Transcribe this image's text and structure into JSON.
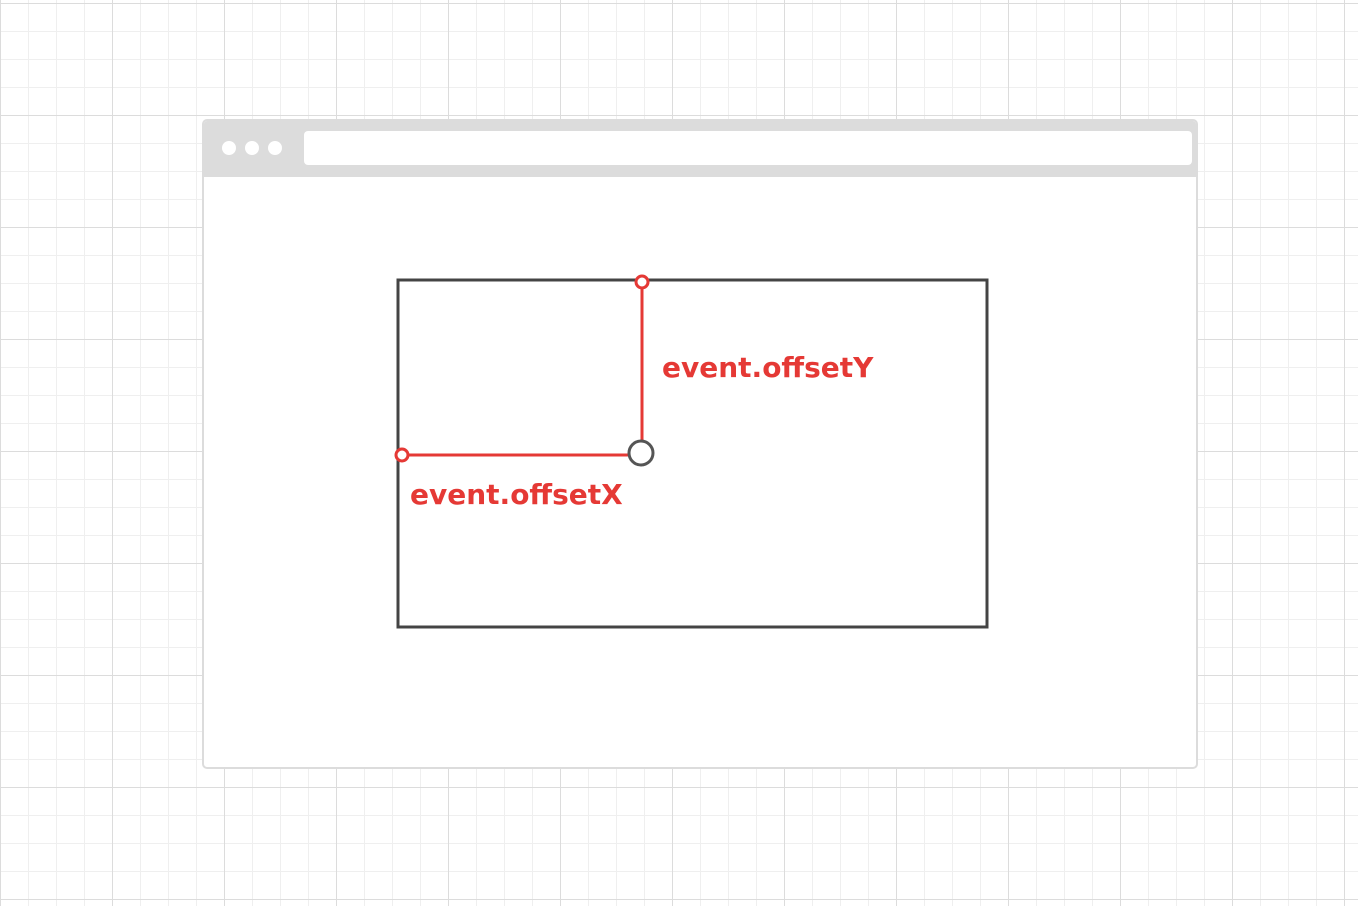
{
  "labels": {
    "offset_y": "event.offsetY",
    "offset_x": "event.offsetX"
  },
  "colors": {
    "accent": "#e53935",
    "element_border": "#444444",
    "window_chrome": "#dcdcdc",
    "grid_line": "#e6e6e6"
  }
}
